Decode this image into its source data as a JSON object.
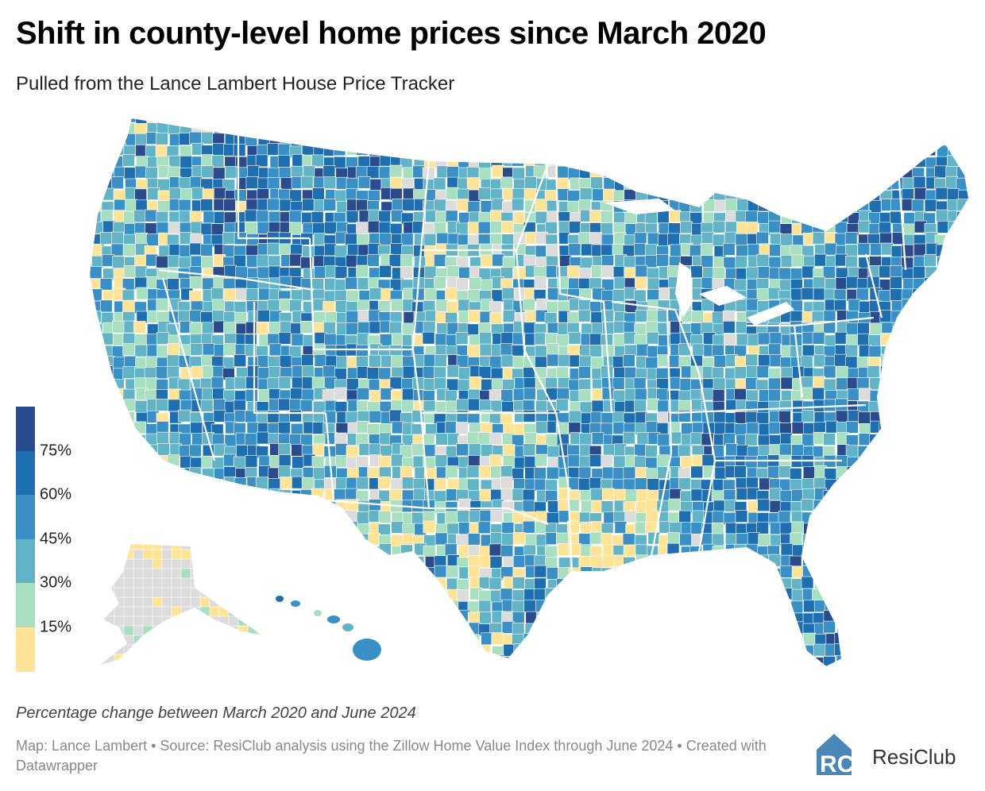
{
  "title": "Shift in county-level home prices since March 2020",
  "subtitle": "Pulled from the Lance Lambert House Price Tracker",
  "legend": {
    "ticks": [
      "75%",
      "60%",
      "45%",
      "30%",
      "15%"
    ],
    "colors": [
      "#2b4c8c",
      "#1f6fb0",
      "#3a8fc4",
      "#62b3c6",
      "#a8dfc0",
      "#ffe396"
    ],
    "no_data_color": "#dcdcdc"
  },
  "map": {
    "type": "choropleth",
    "region": "United States counties",
    "bins": [
      {
        "min": 75,
        "max": null,
        "color": "#2b4c8c"
      },
      {
        "min": 60,
        "max": 75,
        "color": "#1f6fb0"
      },
      {
        "min": 45,
        "max": 60,
        "color": "#3a8fc4"
      },
      {
        "min": 30,
        "max": 45,
        "color": "#62b3c6"
      },
      {
        "min": 15,
        "max": 30,
        "color": "#a8dfc0"
      },
      {
        "min": null,
        "max": 15,
        "color": "#ffe396"
      }
    ]
  },
  "caption": "Percentage change between March 2020 and June 2024",
  "credit": "Map: Lance Lambert • Source: ResiClub analysis using the Zillow Home Value Index through June 2024 • Created with Datawrapper",
  "logo": {
    "text": "ResiClub",
    "monogram": "RC",
    "color": "#4a86b8"
  }
}
